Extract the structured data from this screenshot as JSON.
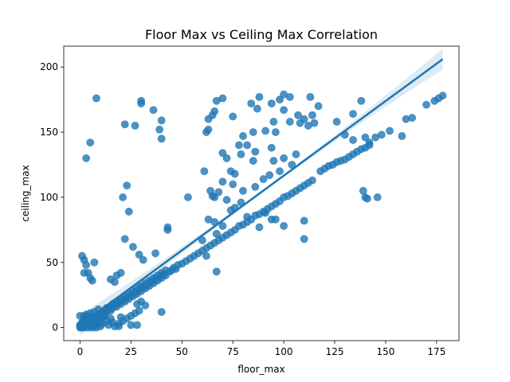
{
  "chart_data": {
    "type": "scatter",
    "title": "Floor Max vs Ceiling Max Correlation",
    "xlabel": "floor_max",
    "ylabel": "ceiling_max",
    "xlim": [
      -8,
      186
    ],
    "ylim": [
      -10,
      216
    ],
    "xticks": [
      0,
      25,
      50,
      75,
      100,
      125,
      150,
      175
    ],
    "yticks": [
      0,
      50,
      100,
      150,
      200
    ],
    "grid": false,
    "colors": {
      "points": "#1f77b4",
      "line": "#1f77b4",
      "band": "#1f77b4"
    },
    "regression": {
      "x": [
        0,
        178
      ],
      "y": [
        2,
        206
      ],
      "ci_halfwidth_at_end": 8
    },
    "points": [
      [
        0,
        0
      ],
      [
        0,
        1
      ],
      [
        0,
        2
      ],
      [
        1,
        0
      ],
      [
        1,
        1
      ],
      [
        1,
        3
      ],
      [
        2,
        0
      ],
      [
        2,
        2
      ],
      [
        2,
        4
      ],
      [
        3,
        1
      ],
      [
        3,
        3
      ],
      [
        3,
        6
      ],
      [
        4,
        0
      ],
      [
        4,
        2
      ],
      [
        4,
        5
      ],
      [
        5,
        1
      ],
      [
        5,
        3
      ],
      [
        5,
        7
      ],
      [
        6,
        2
      ],
      [
        6,
        4
      ],
      [
        6,
        8
      ],
      [
        7,
        3
      ],
      [
        7,
        6
      ],
      [
        8,
        2
      ],
      [
        8,
        5
      ],
      [
        8,
        9
      ],
      [
        9,
        4
      ],
      [
        9,
        8
      ],
      [
        10,
        6
      ],
      [
        10,
        10
      ],
      [
        11,
        8
      ],
      [
        11,
        12
      ],
      [
        12,
        10
      ],
      [
        12,
        13
      ],
      [
        13,
        12
      ],
      [
        13,
        15
      ],
      [
        14,
        14
      ],
      [
        15,
        13
      ],
      [
        15,
        16
      ],
      [
        16,
        15
      ],
      [
        16,
        18
      ],
      [
        17,
        17
      ],
      [
        18,
        16
      ],
      [
        18,
        20
      ],
      [
        19,
        19
      ],
      [
        20,
        18
      ],
      [
        20,
        22
      ],
      [
        21,
        21
      ],
      [
        22,
        20
      ],
      [
        22,
        24
      ],
      [
        23,
        23
      ],
      [
        24,
        22
      ],
      [
        24,
        26
      ],
      [
        25,
        25
      ],
      [
        26,
        24
      ],
      [
        26,
        28
      ],
      [
        27,
        27
      ],
      [
        28,
        26
      ],
      [
        28,
        30
      ],
      [
        29,
        29
      ],
      [
        30,
        28
      ],
      [
        30,
        32
      ],
      [
        31,
        31
      ],
      [
        32,
        30
      ],
      [
        32,
        34
      ],
      [
        33,
        33
      ],
      [
        34,
        32
      ],
      [
        34,
        36
      ],
      [
        35,
        35
      ],
      [
        36,
        34
      ],
      [
        36,
        38
      ],
      [
        37,
        37
      ],
      [
        38,
        36
      ],
      [
        38,
        40
      ],
      [
        39,
        39
      ],
      [
        40,
        38
      ],
      [
        40,
        42
      ],
      [
        41,
        41
      ],
      [
        42,
        40
      ],
      [
        42,
        44
      ],
      [
        44,
        43
      ],
      [
        45,
        44
      ],
      [
        46,
        46
      ],
      [
        47,
        45
      ],
      [
        48,
        48
      ],
      [
        50,
        49
      ],
      [
        52,
        51
      ],
      [
        54,
        53
      ],
      [
        56,
        55
      ],
      [
        58,
        57
      ],
      [
        60,
        59
      ],
      [
        62,
        61
      ],
      [
        64,
        63
      ],
      [
        66,
        65
      ],
      [
        68,
        67
      ],
      [
        70,
        69
      ],
      [
        72,
        71
      ],
      [
        74,
        73
      ],
      [
        76,
        75
      ],
      [
        78,
        78
      ],
      [
        80,
        79
      ],
      [
        82,
        81
      ],
      [
        84,
        83
      ],
      [
        86,
        86
      ],
      [
        88,
        87
      ],
      [
        90,
        89
      ],
      [
        92,
        91
      ],
      [
        94,
        93
      ],
      [
        96,
        95
      ],
      [
        98,
        97
      ],
      [
        100,
        100
      ],
      [
        102,
        101
      ],
      [
        104,
        103
      ],
      [
        106,
        105
      ],
      [
        108,
        107
      ],
      [
        110,
        109
      ],
      [
        112,
        111
      ],
      [
        114,
        113
      ],
      [
        118,
        120
      ],
      [
        120,
        122
      ],
      [
        122,
        124
      ],
      [
        124,
        125
      ],
      [
        126,
        127
      ],
      [
        128,
        128
      ],
      [
        130,
        129
      ],
      [
        132,
        131
      ],
      [
        134,
        133
      ],
      [
        136,
        135
      ],
      [
        138,
        137
      ],
      [
        140,
        138
      ],
      [
        142,
        140
      ],
      [
        145,
        146
      ],
      [
        148,
        148
      ],
      [
        152,
        151
      ],
      [
        158,
        147
      ],
      [
        163,
        161
      ],
      [
        160,
        160
      ],
      [
        170,
        171
      ],
      [
        174,
        174
      ],
      [
        176,
        176
      ],
      [
        178,
        178
      ],
      [
        1,
        4
      ],
      [
        2,
        6
      ],
      [
        0,
        9
      ],
      [
        3,
        10
      ],
      [
        5,
        11
      ],
      [
        7,
        12
      ],
      [
        9,
        14
      ],
      [
        11,
        3
      ],
      [
        13,
        5
      ],
      [
        15,
        7
      ],
      [
        17,
        1
      ],
      [
        19,
        3
      ],
      [
        21,
        5
      ],
      [
        23,
        7
      ],
      [
        25,
        9
      ],
      [
        27,
        11
      ],
      [
        29,
        13
      ],
      [
        14,
        2
      ],
      [
        16,
        4
      ],
      [
        20,
        8
      ],
      [
        12,
        9
      ],
      [
        10,
        1
      ],
      [
        8,
        0
      ],
      [
        6,
        0
      ],
      [
        4,
        8
      ],
      [
        2,
        9
      ],
      [
        1,
        55
      ],
      [
        2,
        52
      ],
      [
        3,
        48
      ],
      [
        4,
        42
      ],
      [
        5,
        38
      ],
      [
        6,
        36
      ],
      [
        2,
        42
      ],
      [
        7,
        50
      ],
      [
        3,
        130
      ],
      [
        5,
        142
      ],
      [
        8,
        176
      ],
      [
        30,
        172
      ],
      [
        30,
        174
      ],
      [
        36,
        167
      ],
      [
        40,
        159
      ],
      [
        39,
        152
      ],
      [
        40,
        145
      ],
      [
        22,
        156
      ],
      [
        27,
        155
      ],
      [
        23,
        109
      ],
      [
        24,
        89
      ],
      [
        21,
        100
      ],
      [
        22,
        68
      ],
      [
        26,
        62
      ],
      [
        29,
        56
      ],
      [
        31,
        52
      ],
      [
        18,
        40
      ],
      [
        20,
        42
      ],
      [
        17,
        35
      ],
      [
        15,
        37
      ],
      [
        28,
        18
      ],
      [
        30,
        20
      ],
      [
        32,
        17
      ],
      [
        40,
        12
      ],
      [
        25,
        2
      ],
      [
        28,
        2
      ],
      [
        19,
        1
      ],
      [
        37,
        57
      ],
      [
        43,
        75
      ],
      [
        43,
        77
      ],
      [
        53,
        100
      ],
      [
        60,
        67
      ],
      [
        62,
        55
      ],
      [
        67,
        43
      ],
      [
        66,
        81
      ],
      [
        63,
        83
      ],
      [
        67,
        72
      ],
      [
        70,
        78
      ],
      [
        72,
        130
      ],
      [
        70,
        134
      ],
      [
        74,
        120
      ],
      [
        76,
        118
      ],
      [
        75,
        110
      ],
      [
        74,
        90
      ],
      [
        76,
        92
      ],
      [
        79,
        96
      ],
      [
        80,
        105
      ],
      [
        86,
        108
      ],
      [
        82,
        85
      ],
      [
        88,
        77
      ],
      [
        94,
        83
      ],
      [
        91,
        88
      ],
      [
        96,
        83
      ],
      [
        100,
        78
      ],
      [
        110,
        82
      ],
      [
        110,
        68
      ],
      [
        139,
        105
      ],
      [
        140,
        100
      ],
      [
        141,
        99
      ],
      [
        146,
        100
      ],
      [
        61,
        120
      ],
      [
        64,
        105
      ],
      [
        65,
        101
      ],
      [
        62,
        150
      ],
      [
        63,
        152
      ],
      [
        63,
        160
      ],
      [
        65,
        163
      ],
      [
        66,
        166
      ],
      [
        67,
        174
      ],
      [
        70,
        176
      ],
      [
        75,
        162
      ],
      [
        80,
        147
      ],
      [
        82,
        140
      ],
      [
        84,
        172
      ],
      [
        85,
        150
      ],
      [
        87,
        168
      ],
      [
        88,
        177
      ],
      [
        91,
        151
      ],
      [
        94,
        172
      ],
      [
        95,
        158
      ],
      [
        98,
        175
      ],
      [
        100,
        179
      ],
      [
        103,
        177
      ],
      [
        107,
        163
      ],
      [
        110,
        160
      ],
      [
        112,
        155
      ],
      [
        114,
        163
      ],
      [
        117,
        170
      ],
      [
        103,
        158
      ],
      [
        108,
        157
      ],
      [
        113,
        177
      ],
      [
        115,
        157
      ],
      [
        100,
        167
      ],
      [
        96,
        150
      ],
      [
        94,
        138
      ],
      [
        86,
        135
      ],
      [
        85,
        128
      ],
      [
        79,
        133
      ],
      [
        78,
        140
      ],
      [
        70,
        112
      ],
      [
        68,
        104
      ],
      [
        72,
        98
      ],
      [
        66,
        100
      ],
      [
        90,
        114
      ],
      [
        93,
        117
      ],
      [
        98,
        120
      ],
      [
        95,
        128
      ],
      [
        100,
        130
      ],
      [
        104,
        125
      ],
      [
        106,
        133
      ],
      [
        134,
        164
      ],
      [
        138,
        174
      ],
      [
        126,
        158
      ],
      [
        130,
        148
      ],
      [
        134,
        144
      ],
      [
        140,
        146
      ],
      [
        142,
        142
      ]
    ]
  }
}
